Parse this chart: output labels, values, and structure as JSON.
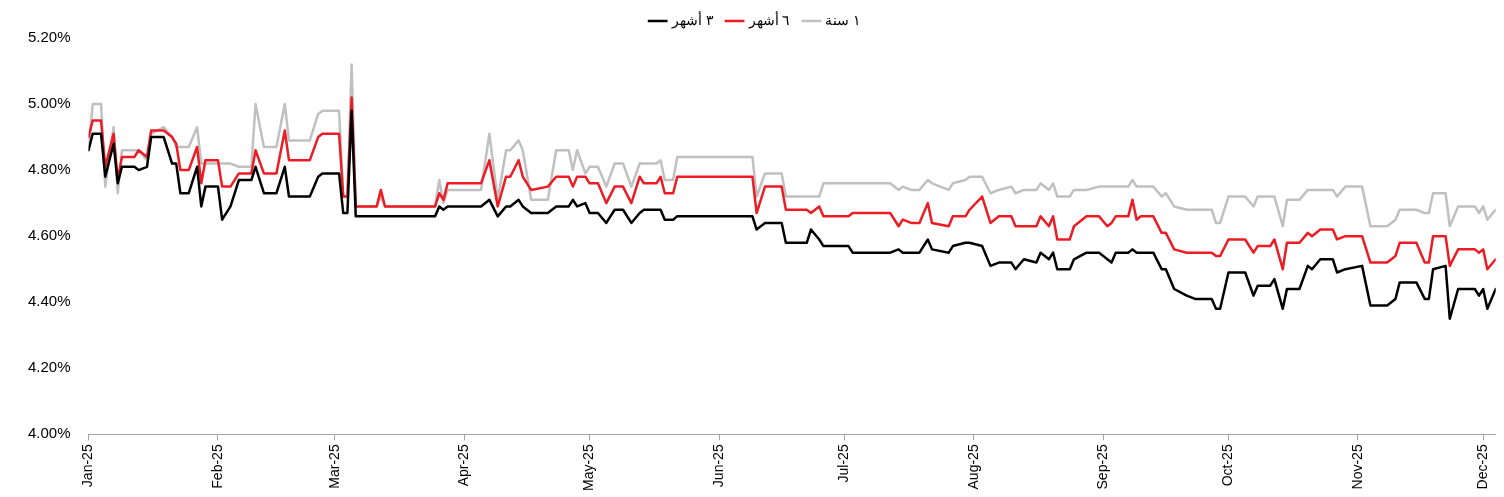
{
  "chart_data": {
    "type": "line",
    "x": [
      "2025-01-01",
      "2025-01-02",
      "2025-01-04",
      "2025-01-05",
      "2025-01-07",
      "2025-01-08",
      "2025-01-09",
      "2025-01-12",
      "2025-01-13",
      "2025-01-15",
      "2025-01-16",
      "2025-01-19",
      "2025-01-21",
      "2025-01-22",
      "2025-01-23",
      "2025-01-25",
      "2025-01-27",
      "2025-01-28",
      "2025-01-29",
      "2025-02-01",
      "2025-02-02",
      "2025-02-04",
      "2025-02-06",
      "2025-02-09",
      "2025-02-10",
      "2025-02-12",
      "2025-02-15",
      "2025-02-17",
      "2025-02-18",
      "2025-02-23",
      "2025-02-25",
      "2025-02-26",
      "2025-03-02",
      "2025-03-03",
      "2025-03-04",
      "2025-03-05",
      "2025-03-06",
      "2025-03-11",
      "2025-03-12",
      "2025-03-13",
      "2025-03-25",
      "2025-03-26",
      "2025-03-27",
      "2025-03-28",
      "2025-04-05",
      "2025-04-07",
      "2025-04-09",
      "2025-04-11",
      "2025-04-12",
      "2025-04-14",
      "2025-04-15",
      "2025-04-17",
      "2025-04-21",
      "2025-04-23",
      "2025-04-24",
      "2025-04-26",
      "2025-04-27",
      "2025-04-28",
      "2025-04-30",
      "2025-05-01",
      "2025-05-03",
      "2025-05-05",
      "2025-05-07",
      "2025-05-09",
      "2025-05-11",
      "2025-05-13",
      "2025-05-14",
      "2025-05-17",
      "2025-05-18",
      "2025-05-19",
      "2025-05-21",
      "2025-05-22",
      "2025-06-09",
      "2025-06-10",
      "2025-06-12",
      "2025-06-16",
      "2025-06-17",
      "2025-06-22",
      "2025-06-23",
      "2025-06-25",
      "2025-06-26",
      "2025-07-02",
      "2025-07-03",
      "2025-07-12",
      "2025-07-14",
      "2025-07-15",
      "2025-07-17",
      "2025-07-19",
      "2025-07-21",
      "2025-07-22",
      "2025-07-26",
      "2025-07-27",
      "2025-07-30",
      "2025-07-31",
      "2025-08-03",
      "2025-08-05",
      "2025-08-07",
      "2025-08-10",
      "2025-08-11",
      "2025-08-13",
      "2025-08-16",
      "2025-08-17",
      "2025-08-19",
      "2025-08-20",
      "2025-08-21",
      "2025-08-24",
      "2025-08-25",
      "2025-08-28",
      "2025-08-31",
      "2025-09-02",
      "2025-09-03",
      "2025-09-04",
      "2025-09-07",
      "2025-09-08",
      "2025-09-09",
      "2025-09-10",
      "2025-09-13",
      "2025-09-15",
      "2025-09-16",
      "2025-09-18",
      "2025-09-21",
      "2025-09-23",
      "2025-09-27",
      "2025-09-28",
      "2025-09-29",
      "2025-10-01",
      "2025-10-05",
      "2025-10-07",
      "2025-10-08",
      "2025-10-11",
      "2025-10-12",
      "2025-10-14",
      "2025-10-15",
      "2025-10-18",
      "2025-10-20",
      "2025-10-21",
      "2025-10-23",
      "2025-10-26",
      "2025-10-27",
      "2025-10-29",
      "2025-11-02",
      "2025-11-04",
      "2025-11-08",
      "2025-11-10",
      "2025-11-11",
      "2025-11-15",
      "2025-11-17",
      "2025-11-18",
      "2025-11-19",
      "2025-11-22",
      "2025-11-23",
      "2025-11-25",
      "2025-11-29",
      "2025-11-30",
      "2025-12-01",
      "2025-12-02",
      "2025-12-04"
    ],
    "series": [
      {
        "name": "٣ أشهر",
        "color": "#000000",
        "values": [
          4.86,
          4.91,
          4.91,
          4.78,
          4.88,
          4.76,
          4.81,
          4.81,
          4.8,
          4.81,
          4.9,
          4.9,
          4.82,
          4.82,
          4.73,
          4.73,
          4.81,
          4.69,
          4.75,
          4.75,
          4.65,
          4.69,
          4.77,
          4.77,
          4.81,
          4.73,
          4.73,
          4.81,
          4.72,
          4.72,
          4.78,
          4.79,
          4.79,
          4.67,
          4.67,
          4.98,
          4.66,
          4.66,
          4.66,
          4.66,
          4.66,
          4.69,
          4.68,
          4.69,
          4.69,
          4.71,
          4.66,
          4.69,
          4.69,
          4.71,
          4.69,
          4.67,
          4.67,
          4.69,
          4.69,
          4.69,
          4.71,
          4.69,
          4.7,
          4.67,
          4.67,
          4.64,
          4.68,
          4.68,
          4.64,
          4.67,
          4.68,
          4.68,
          4.68,
          4.65,
          4.65,
          4.66,
          4.66,
          4.62,
          4.64,
          4.64,
          4.58,
          4.58,
          4.62,
          4.59,
          4.57,
          4.57,
          4.55,
          4.55,
          4.56,
          4.55,
          4.55,
          4.55,
          4.59,
          4.56,
          4.55,
          4.57,
          4.58,
          4.58,
          4.57,
          4.51,
          4.52,
          4.52,
          4.5,
          4.53,
          4.52,
          4.55,
          4.53,
          4.55,
          4.5,
          4.5,
          4.53,
          4.55,
          4.55,
          4.53,
          4.52,
          4.55,
          4.55,
          4.56,
          4.55,
          4.55,
          4.55,
          4.5,
          4.5,
          4.44,
          4.42,
          4.41,
          4.41,
          4.38,
          4.38,
          4.49,
          4.49,
          4.42,
          4.45,
          4.45,
          4.47,
          4.38,
          4.44,
          4.44,
          4.51,
          4.5,
          4.53,
          4.53,
          4.49,
          4.5,
          4.51,
          4.39,
          4.39,
          4.41,
          4.46,
          4.46,
          4.41,
          4.41,
          4.5,
          4.51,
          4.35,
          4.44,
          4.44,
          4.42,
          4.44,
          4.38,
          4.44
        ]
      },
      {
        "name": "٦ أشهر",
        "color": "#ed1c24",
        "values": [
          4.9,
          4.95,
          4.95,
          4.81,
          4.91,
          4.77,
          4.84,
          4.84,
          4.86,
          4.84,
          4.92,
          4.92,
          4.9,
          4.88,
          4.8,
          4.8,
          4.87,
          4.76,
          4.83,
          4.83,
          4.75,
          4.75,
          4.79,
          4.79,
          4.86,
          4.79,
          4.79,
          4.92,
          4.83,
          4.83,
          4.9,
          4.91,
          4.91,
          4.72,
          4.72,
          5.02,
          4.69,
          4.69,
          4.74,
          4.69,
          4.69,
          4.73,
          4.71,
          4.76,
          4.76,
          4.83,
          4.69,
          4.78,
          4.78,
          4.83,
          4.78,
          4.74,
          4.75,
          4.78,
          4.78,
          4.78,
          4.75,
          4.78,
          4.78,
          4.76,
          4.76,
          4.7,
          4.75,
          4.75,
          4.7,
          4.78,
          4.76,
          4.76,
          4.78,
          4.73,
          4.73,
          4.78,
          4.78,
          4.67,
          4.75,
          4.75,
          4.68,
          4.68,
          4.67,
          4.69,
          4.66,
          4.66,
          4.67,
          4.67,
          4.63,
          4.65,
          4.64,
          4.64,
          4.7,
          4.64,
          4.63,
          4.66,
          4.66,
          4.68,
          4.72,
          4.64,
          4.66,
          4.66,
          4.63,
          4.63,
          4.63,
          4.66,
          4.63,
          4.66,
          4.59,
          4.59,
          4.63,
          4.66,
          4.66,
          4.63,
          4.64,
          4.66,
          4.66,
          4.71,
          4.65,
          4.66,
          4.66,
          4.61,
          4.61,
          4.56,
          4.55,
          4.55,
          4.55,
          4.54,
          4.54,
          4.59,
          4.59,
          4.55,
          4.57,
          4.57,
          4.59,
          4.5,
          4.58,
          4.58,
          4.61,
          4.6,
          4.62,
          4.62,
          4.59,
          4.6,
          4.6,
          4.52,
          4.52,
          4.54,
          4.58,
          4.58,
          4.52,
          4.52,
          4.6,
          4.6,
          4.51,
          4.56,
          4.56,
          4.55,
          4.56,
          4.5,
          4.53
        ]
      },
      {
        "name": "١ سنة",
        "color": "#c0c0c0",
        "values": [
          4.86,
          5.0,
          5.0,
          4.75,
          4.93,
          4.73,
          4.86,
          4.86,
          4.86,
          4.83,
          4.91,
          4.93,
          4.9,
          4.87,
          4.87,
          4.87,
          4.93,
          4.82,
          4.82,
          4.82,
          4.82,
          4.82,
          4.81,
          4.81,
          5.0,
          4.87,
          4.87,
          5.0,
          4.89,
          4.89,
          4.97,
          4.98,
          4.98,
          4.72,
          4.72,
          5.12,
          4.69,
          4.69,
          4.72,
          4.69,
          4.69,
          4.77,
          4.7,
          4.74,
          4.74,
          4.91,
          4.71,
          4.86,
          4.86,
          4.89,
          4.86,
          4.71,
          4.71,
          4.86,
          4.86,
          4.86,
          4.8,
          4.86,
          4.79,
          4.81,
          4.81,
          4.75,
          4.82,
          4.82,
          4.75,
          4.82,
          4.82,
          4.82,
          4.83,
          4.77,
          4.77,
          4.84,
          4.84,
          4.72,
          4.79,
          4.79,
          4.72,
          4.72,
          4.72,
          4.72,
          4.76,
          4.76,
          4.76,
          4.76,
          4.74,
          4.75,
          4.74,
          4.74,
          4.77,
          4.76,
          4.74,
          4.76,
          4.77,
          4.78,
          4.78,
          4.73,
          4.74,
          4.75,
          4.73,
          4.74,
          4.74,
          4.76,
          4.74,
          4.76,
          4.72,
          4.72,
          4.74,
          4.74,
          4.75,
          4.75,
          4.75,
          4.75,
          4.75,
          4.77,
          4.75,
          4.75,
          4.75,
          4.72,
          4.73,
          4.69,
          4.68,
          4.68,
          4.68,
          4.64,
          4.64,
          4.72,
          4.72,
          4.69,
          4.72,
          4.72,
          4.72,
          4.63,
          4.71,
          4.71,
          4.74,
          4.74,
          4.74,
          4.74,
          4.72,
          4.75,
          4.75,
          4.63,
          4.63,
          4.65,
          4.68,
          4.68,
          4.67,
          4.67,
          4.73,
          4.73,
          4.63,
          4.69,
          4.69,
          4.67,
          4.69,
          4.65,
          4.68
        ]
      }
    ],
    "xlim": [
      "2025-01-01",
      "2025-12-04"
    ],
    "xticks": [
      {
        "value": "2025-01-01",
        "label": "Jan-25"
      },
      {
        "value": "2025-02-01",
        "label": "Feb-25"
      },
      {
        "value": "2025-03-01",
        "label": "Mar-25"
      },
      {
        "value": "2025-04-01",
        "label": "Apr-25"
      },
      {
        "value": "2025-05-01",
        "label": "May-25"
      },
      {
        "value": "2025-06-01",
        "label": "Jun-25"
      },
      {
        "value": "2025-07-01",
        "label": "Jul-25"
      },
      {
        "value": "2025-08-01",
        "label": "Aug-25"
      },
      {
        "value": "2025-09-01",
        "label": "Sep-25"
      },
      {
        "value": "2025-10-01",
        "label": "Oct-25"
      },
      {
        "value": "2025-11-01",
        "label": "Nov-25"
      },
      {
        "value": "2025-12-01",
        "label": "Dec-25"
      }
    ],
    "ylim": [
      4.0,
      5.2
    ],
    "yticks": [
      {
        "value": 4.0,
        "label": "4.00%"
      },
      {
        "value": 4.2,
        "label": "4.20%"
      },
      {
        "value": 4.4,
        "label": "4.40%"
      },
      {
        "value": 4.6,
        "label": "4.60%"
      },
      {
        "value": 4.8,
        "label": "4.80%"
      },
      {
        "value": 5.0,
        "label": "5.00%"
      },
      {
        "value": 5.2,
        "label": "5.20%"
      }
    ],
    "legend": "top",
    "marker": "none",
    "line_style": "solid",
    "grid": false
  }
}
